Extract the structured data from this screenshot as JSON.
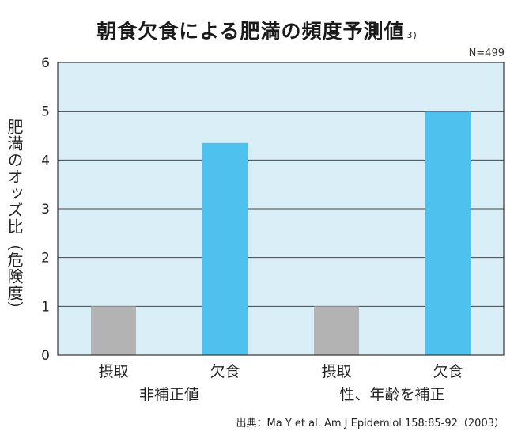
{
  "chart_data": {
    "type": "bar",
    "title": "朝食欠食による肥満の頻度予測値",
    "title_ref": "3)",
    "annotation": "N=499",
    "ylabel": "肥満のオッズ比（危険度）",
    "ylim": [
      0,
      6
    ],
    "yticks": [
      0,
      1,
      2,
      3,
      4,
      5,
      6
    ],
    "grid": true,
    "background_color": "#daeef8",
    "categories": [
      "摂取",
      "欠食",
      "摂取",
      "欠食"
    ],
    "values": [
      1.0,
      4.35,
      1.0,
      5.0
    ],
    "bar_colors": [
      "#b3b3b3",
      "#4fc1ee",
      "#b3b3b3",
      "#4fc1ee"
    ],
    "groups": [
      {
        "label": "非補正値",
        "categories": [
          0,
          1
        ]
      },
      {
        "label": "性、年齢を補正",
        "categories": [
          2,
          3
        ]
      }
    ],
    "source": "出典：Ma Y et al. Am J Epidemiol 158:85-92（2003）"
  }
}
